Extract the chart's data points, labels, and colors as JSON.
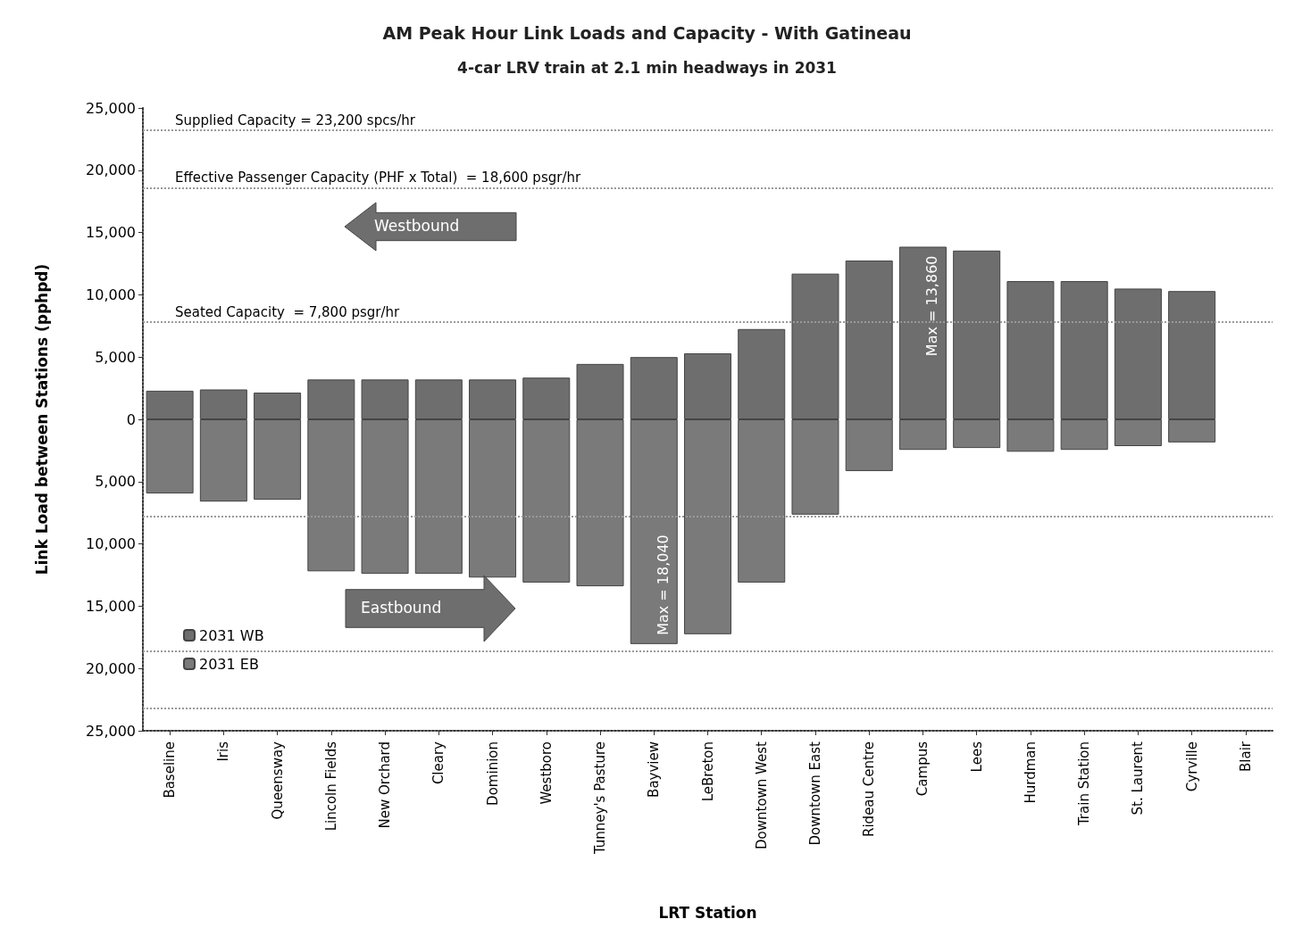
{
  "chart_data": {
    "type": "bar",
    "title": "AM Peak Hour Link Loads and Capacity - With Gatineau",
    "subtitle": "4-car LRV train at 2.1 min headways in 2031",
    "xlabel": "LRT Station",
    "ylabel": "Link Load between Stations (pphpd)",
    "categories": [
      "Baseline",
      "Iris",
      "Queensway",
      "Lincoln Fields",
      "New Orchard",
      "Cleary",
      "Dominion",
      "Westboro",
      "Tunney's Pasture",
      "Bayview",
      "LeBreton",
      "Downtown West",
      "Downtown East",
      "Rideau Centre",
      "Campus",
      "Lees",
      "Hurdman",
      "Train Station",
      "St. Laurent",
      "Cyrville",
      "Blair"
    ],
    "stacked": true,
    "ylim": [
      -25000,
      25000
    ],
    "yticks": [
      {
        "value": -25000,
        "label": "25,000"
      },
      {
        "value": -20000,
        "label": "20,000"
      },
      {
        "value": -15000,
        "label": "15,000"
      },
      {
        "value": -10000,
        "label": "10,000"
      },
      {
        "value": -5000,
        "label": "5,000"
      },
      {
        "value": 0,
        "label": "0"
      },
      {
        "value": 5000,
        "label": "5,000"
      },
      {
        "value": 10000,
        "label": "10,000"
      },
      {
        "value": 15000,
        "label": "15,000"
      },
      {
        "value": 20000,
        "label": "20,000"
      },
      {
        "value": 25000,
        "label": "25,000"
      }
    ],
    "series": [
      {
        "name": "2031 WB",
        "color": "#6e6e6e",
        "values": [
          2300,
          2400,
          2150,
          3200,
          3200,
          3200,
          3200,
          3350,
          4450,
          5000,
          5300,
          7250,
          11700,
          12750,
          13860,
          13550,
          11100,
          11100,
          10500,
          10300,
          null
        ]
      },
      {
        "name": "2031 EB",
        "color": "#7a7a7a",
        "values": [
          -5950,
          -6600,
          -6450,
          -12200,
          -12400,
          -12400,
          -12700,
          -13100,
          -13400,
          -18040,
          -17250,
          -13100,
          -7650,
          -4150,
          -2450,
          -2300,
          -2600,
          -2450,
          -2150,
          -1850,
          null
        ]
      }
    ],
    "ref_lines": [
      {
        "axis": "y",
        "value": 23200,
        "label": "Supplied Capacity = 23,200 spcs/hr",
        "color": "#9a9a9a",
        "line_style": "dotted"
      },
      {
        "axis": "y",
        "value": 18600,
        "label": "Effective Passenger Capacity (PHF x Total)  = 18,600 psgr/hr",
        "color": "#9a9a9a",
        "line_style": "dotted"
      },
      {
        "axis": "y",
        "value": 7800,
        "label": "Seated Capacity  = 7,800 psgr/hr",
        "color": "#9a9a9a",
        "line_style": "dotted"
      },
      {
        "axis": "y",
        "value": -7800,
        "label": null,
        "color": "#9a9a9a",
        "line_style": "dotted"
      },
      {
        "axis": "y",
        "value": -18600,
        "label": null,
        "color": "#9a9a9a",
        "line_style": "dotted"
      },
      {
        "axis": "y",
        "value": -23200,
        "label": null,
        "color": "#9a9a9a",
        "line_style": "dotted"
      }
    ],
    "annotations": [
      "Westbound",
      "Eastbound",
      {
        "text": "Max = 13,860",
        "x": "Campus",
        "y": 13860
      },
      {
        "text": "Max = 18,040",
        "x": "Bayview",
        "y": -18040
      }
    ],
    "legend": "bottom left",
    "grid": false
  }
}
